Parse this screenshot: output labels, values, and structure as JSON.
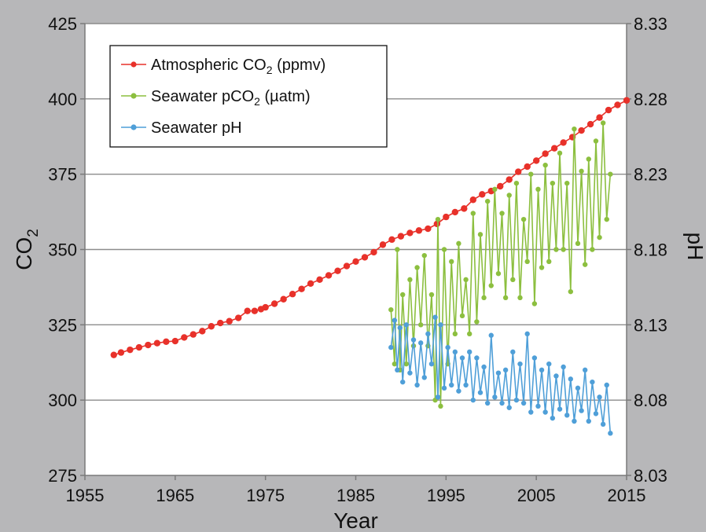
{
  "chart_data": {
    "type": "line",
    "xlabel": "Year",
    "ylabel_left_main": "CO",
    "ylabel_left_sub": "2",
    "ylabel_right": "pH",
    "xlim": [
      1955,
      2015
    ],
    "x_ticks": [
      1955,
      1965,
      1975,
      1985,
      1995,
      2005,
      2015
    ],
    "ylim_left": [
      275,
      425
    ],
    "y_ticks_left": [
      275,
      300,
      325,
      350,
      375,
      400,
      425
    ],
    "ylim_right": [
      8.03,
      8.33
    ],
    "y_ticks_right": [
      "8.03",
      "8.08",
      "8.13",
      "8.18",
      "8.23",
      "8.28",
      "8.33"
    ],
    "grid": "horizontal",
    "legend_position": "top-left",
    "background_color": "#b7b7b9",
    "plot_background_color": "#ffffff",
    "grid_color": "#8c8c8c",
    "series": [
      {
        "legend_main": "Atmospheric CO",
        "legend_sub": "2",
        "legend_tail": " (ppmv)",
        "axis": "left",
        "color": "#e8312a",
        "x": [
          1958.2,
          1959,
          1960,
          1961,
          1962,
          1963,
          1964,
          1965,
          1966,
          1967,
          1968,
          1969,
          1970,
          1971,
          1972,
          1973,
          1973.8,
          1974.5,
          1975,
          1976,
          1977,
          1978,
          1979,
          1980,
          1981,
          1982,
          1983,
          1984,
          1985,
          1986,
          1987,
          1988,
          1989,
          1990,
          1991,
          1992,
          1993,
          1994,
          1995,
          1996,
          1997,
          1998,
          1999,
          2000,
          2001,
          2002,
          2003,
          2004,
          2005,
          2006,
          2007,
          2008,
          2009,
          2010,
          2011,
          2012,
          2013,
          2014,
          2015
        ],
        "values": [
          315.0,
          315.8,
          316.7,
          317.5,
          318.3,
          318.9,
          319.4,
          319.6,
          320.8,
          321.8,
          322.9,
          324.5,
          325.6,
          326.2,
          327.3,
          329.6,
          329.6,
          330.2,
          330.8,
          332.0,
          333.5,
          335.2,
          336.9,
          338.7,
          340.0,
          341.4,
          342.9,
          344.5,
          346.0,
          347.4,
          349.1,
          351.6,
          353.3,
          354.4,
          355.5,
          356.3,
          356.9,
          358.5,
          360.8,
          362.4,
          363.6,
          366.5,
          368.3,
          369.4,
          371.0,
          373.2,
          375.8,
          377.5,
          379.5,
          381.8,
          383.6,
          385.5,
          387.3,
          389.5,
          391.6,
          393.8,
          396.3,
          398.0,
          399.5
        ]
      },
      {
        "legend_main": "Seawater pCO",
        "legend_sub": "2",
        "legend_tail": " (µatm)",
        "axis": "left",
        "color": "#8cbf3f",
        "x": [
          1988.9,
          1989.3,
          1989.6,
          1989.9,
          1990.2,
          1990.6,
          1991.0,
          1991.4,
          1991.8,
          1992.2,
          1992.6,
          1993.0,
          1993.4,
          1993.8,
          1994.1,
          1994.4,
          1994.8,
          1995.2,
          1995.6,
          1996.0,
          1996.4,
          1996.8,
          1997.2,
          1997.6,
          1998.0,
          1998.4,
          1998.8,
          1999.2,
          1999.6,
          2000.0,
          2000.4,
          2000.8,
          2001.2,
          2001.6,
          2002.0,
          2002.4,
          2002.8,
          2003.2,
          2003.6,
          2004.0,
          2004.4,
          2004.8,
          2005.2,
          2005.6,
          2006.0,
          2006.4,
          2006.8,
          2007.2,
          2007.6,
          2008.0,
          2008.4,
          2008.8,
          2009.2,
          2009.6,
          2010.0,
          2010.4,
          2010.8,
          2011.2,
          2011.6,
          2012.0,
          2012.4,
          2012.8,
          2013.2
        ],
        "values": [
          330,
          312,
          350,
          310,
          335,
          312,
          340,
          318,
          344,
          325,
          348,
          318,
          335,
          300,
          360,
          298,
          350,
          312,
          346,
          322,
          352,
          328,
          340,
          322,
          362,
          326,
          355,
          334,
          366,
          338,
          370,
          342,
          362,
          334,
          368,
          340,
          372,
          334,
          360,
          346,
          375,
          332,
          370,
          344,
          378,
          346,
          372,
          350,
          382,
          350,
          372,
          336,
          390,
          352,
          376,
          345,
          380,
          350,
          386,
          354,
          392,
          360,
          375
        ]
      },
      {
        "legend_main": "Seawater pH",
        "legend_sub": "",
        "legend_tail": "",
        "axis": "right",
        "color": "#4f9fd8",
        "x": [
          1988.9,
          1989.3,
          1989.6,
          1989.9,
          1990.2,
          1990.6,
          1991.0,
          1991.4,
          1991.8,
          1992.2,
          1992.6,
          1993.0,
          1993.4,
          1993.8,
          1994.1,
          1994.4,
          1994.8,
          1995.2,
          1995.6,
          1996.0,
          1996.4,
          1996.8,
          1997.2,
          1997.6,
          1998.0,
          1998.4,
          1998.8,
          1999.2,
          1999.6,
          2000.0,
          2000.4,
          2000.8,
          2001.2,
          2001.6,
          2002.0,
          2002.4,
          2002.8,
          2003.2,
          2003.6,
          2004.0,
          2004.4,
          2004.8,
          2005.2,
          2005.6,
          2006.0,
          2006.4,
          2006.8,
          2007.2,
          2007.6,
          2008.0,
          2008.4,
          2008.8,
          2009.2,
          2009.6,
          2010.0,
          2010.4,
          2010.8,
          2011.2,
          2011.6,
          2012.0,
          2012.4,
          2012.8,
          2013.2
        ],
        "values": [
          8.115,
          8.133,
          8.1,
          8.128,
          8.092,
          8.13,
          8.098,
          8.12,
          8.09,
          8.118,
          8.095,
          8.124,
          8.104,
          8.135,
          8.082,
          8.13,
          8.088,
          8.115,
          8.09,
          8.112,
          8.086,
          8.108,
          8.09,
          8.112,
          8.08,
          8.108,
          8.085,
          8.102,
          8.078,
          8.123,
          8.082,
          8.098,
          8.078,
          8.1,
          8.075,
          8.112,
          8.08,
          8.104,
          8.078,
          8.124,
          8.072,
          8.108,
          8.076,
          8.1,
          8.072,
          8.104,
          8.068,
          8.096,
          8.074,
          8.102,
          8.07,
          8.094,
          8.066,
          8.088,
          8.073,
          8.1,
          8.066,
          8.092,
          8.071,
          8.082,
          8.064,
          8.09,
          8.058
        ]
      }
    ]
  }
}
